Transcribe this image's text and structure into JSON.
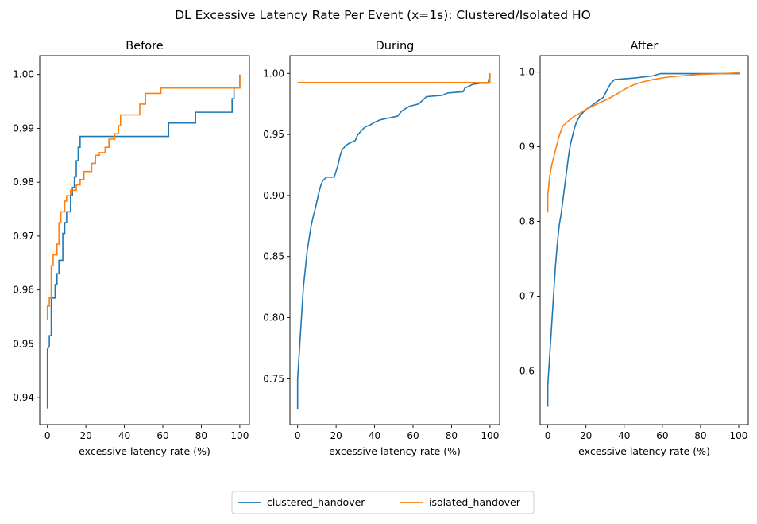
{
  "chart_data": {
    "type": "line",
    "title": "DL Excessive Latency Rate Per Event (x=1s): Clustered/Isolated HO",
    "colors": {
      "clustered_handover": "#1f77b4",
      "isolated_handover": "#ff7f0e"
    },
    "legend": {
      "placement": "bottom-center",
      "entries": [
        {
          "name": "clustered_handover",
          "color": "#1f77b4"
        },
        {
          "name": "isolated_handover",
          "color": "#ff7f0e"
        }
      ]
    },
    "panels": [
      {
        "title": "Before",
        "xlabel": "excessive latency rate (%)",
        "xlim": [
          -4,
          105
        ],
        "ylim": [
          0.935,
          1.0035
        ],
        "xticks": [
          0,
          20,
          40,
          60,
          80,
          100
        ],
        "xtick_labels": [
          "0",
          "20",
          "40",
          "60",
          "80",
          "100"
        ],
        "yticks": [
          0.94,
          0.95,
          0.96,
          0.97,
          0.98,
          0.99,
          1.0
        ],
        "ytick_labels": [
          "0.94",
          "0.95",
          "0.96",
          "0.97",
          "0.98",
          "0.99",
          "1.00"
        ],
        "series": [
          {
            "name": "clustered_handover",
            "points": [
              [
                0,
                0.938
              ],
              [
                0,
                0.949
              ],
              [
                1,
                0.9495
              ],
              [
                1,
                0.9515
              ],
              [
                2,
                0.9515
              ],
              [
                2,
                0.9585
              ],
              [
                4,
                0.9585
              ],
              [
                4,
                0.961
              ],
              [
                5,
                0.961
              ],
              [
                5,
                0.963
              ],
              [
                6,
                0.963
              ],
              [
                6,
                0.9655
              ],
              [
                8,
                0.9655
              ],
              [
                8,
                0.9705
              ],
              [
                9,
                0.9705
              ],
              [
                9,
                0.9725
              ],
              [
                10,
                0.9725
              ],
              [
                10,
                0.9745
              ],
              [
                12,
                0.9745
              ],
              [
                12,
                0.9775
              ],
              [
                13,
                0.9775
              ],
              [
                13,
                0.979
              ],
              [
                14,
                0.979
              ],
              [
                14,
                0.981
              ],
              [
                15,
                0.981
              ],
              [
                15,
                0.984
              ],
              [
                16,
                0.984
              ],
              [
                16,
                0.9865
              ],
              [
                17,
                0.9865
              ],
              [
                17,
                0.9885
              ],
              [
                63,
                0.9885
              ],
              [
                63,
                0.991
              ],
              [
                77,
                0.991
              ],
              [
                77,
                0.993
              ],
              [
                96,
                0.993
              ],
              [
                96,
                0.9955
              ],
              [
                97,
                0.9955
              ],
              [
                97,
                0.9975
              ],
              [
                100,
                0.9975
              ],
              [
                100,
                1.0
              ]
            ]
          },
          {
            "name": "isolated_handover",
            "points": [
              [
                0,
                0.9545
              ],
              [
                0,
                0.957
              ],
              [
                1,
                0.957
              ],
              [
                1,
                0.9585
              ],
              [
                2,
                0.9585
              ],
              [
                2,
                0.9645
              ],
              [
                3,
                0.9645
              ],
              [
                3,
                0.9665
              ],
              [
                5,
                0.9665
              ],
              [
                5,
                0.9685
              ],
              [
                6,
                0.9685
              ],
              [
                6,
                0.9725
              ],
              [
                7,
                0.9725
              ],
              [
                7,
                0.9745
              ],
              [
                9,
                0.9745
              ],
              [
                9,
                0.9765
              ],
              [
                10,
                0.9765
              ],
              [
                10,
                0.9775
              ],
              [
                12,
                0.9775
              ],
              [
                12,
                0.9785
              ],
              [
                15,
                0.9785
              ],
              [
                15,
                0.9795
              ],
              [
                17,
                0.9795
              ],
              [
                17,
                0.9805
              ],
              [
                19,
                0.9805
              ],
              [
                19,
                0.982
              ],
              [
                23,
                0.982
              ],
              [
                23,
                0.9835
              ],
              [
                25,
                0.9835
              ],
              [
                25,
                0.985
              ],
              [
                27,
                0.985
              ],
              [
                27,
                0.9855
              ],
              [
                30,
                0.9855
              ],
              [
                30,
                0.9865
              ],
              [
                32,
                0.9865
              ],
              [
                32,
                0.988
              ],
              [
                35,
                0.988
              ],
              [
                35,
                0.989
              ],
              [
                37,
                0.989
              ],
              [
                37,
                0.9905
              ],
              [
                38,
                0.9905
              ],
              [
                38,
                0.9925
              ],
              [
                48,
                0.9925
              ],
              [
                48,
                0.9945
              ],
              [
                51,
                0.9945
              ],
              [
                51,
                0.9965
              ],
              [
                59,
                0.9965
              ],
              [
                59,
                0.9975
              ],
              [
                100,
                0.9975
              ],
              [
                100,
                1.0
              ]
            ]
          }
        ]
      },
      {
        "title": "During",
        "xlabel": "excessive latency rate (%)",
        "xlim": [
          -4,
          105
        ],
        "ylim": [
          0.7125,
          1.0145
        ],
        "xticks": [
          0,
          20,
          40,
          60,
          80,
          100
        ],
        "xtick_labels": [
          "0",
          "20",
          "40",
          "60",
          "80",
          "100"
        ],
        "yticks": [
          0.75,
          0.8,
          0.85,
          0.9,
          0.95,
          1.0
        ],
        "ytick_labels": [
          "0.75",
          "0.80",
          "0.85",
          "0.90",
          "0.95",
          "1.00"
        ],
        "series": [
          {
            "name": "clustered_handover",
            "points": [
              [
                0,
                0.725
              ],
              [
                0,
                0.75
              ],
              [
                1,
                0.775
              ],
              [
                2,
                0.8
              ],
              [
                3,
                0.825
              ],
              [
                4,
                0.84
              ],
              [
                5,
                0.855
              ],
              [
                6,
                0.865
              ],
              [
                7,
                0.875
              ],
              [
                8,
                0.882
              ],
              [
                9,
                0.888
              ],
              [
                10,
                0.895
              ],
              [
                11,
                0.902
              ],
              [
                12,
                0.908
              ],
              [
                13,
                0.912
              ],
              [
                15,
                0.915
              ],
              [
                19,
                0.915
              ],
              [
                20,
                0.92
              ],
              [
                21,
                0.925
              ],
              [
                22,
                0.932
              ],
              [
                23,
                0.937
              ],
              [
                25,
                0.941
              ],
              [
                27,
                0.943
              ],
              [
                30,
                0.945
              ],
              [
                31,
                0.949
              ],
              [
                33,
                0.953
              ],
              [
                35,
                0.956
              ],
              [
                38,
                0.958
              ],
              [
                40,
                0.96
              ],
              [
                43,
                0.962
              ],
              [
                46,
                0.963
              ],
              [
                52,
                0.965
              ],
              [
                54,
                0.969
              ],
              [
                56,
                0.971
              ],
              [
                58,
                0.973
              ],
              [
                63,
                0.975
              ],
              [
                65,
                0.978
              ],
              [
                67,
                0.981
              ],
              [
                75,
                0.982
              ],
              [
                78,
                0.984
              ],
              [
                86,
                0.985
              ],
              [
                87,
                0.988
              ],
              [
                91,
                0.991
              ],
              [
                95,
                0.992
              ],
              [
                99,
                0.992
              ],
              [
                100,
                1.0
              ]
            ]
          },
          {
            "name": "isolated_handover",
            "points": [
              [
                0,
                0.9925
              ],
              [
                100,
                0.9925
              ],
              [
                100,
                1.0
              ]
            ]
          }
        ]
      },
      {
        "title": "After",
        "xlabel": "excessive latency rate (%)",
        "xlim": [
          -4,
          105
        ],
        "ylim": [
          0.528,
          1.022
        ],
        "xticks": [
          0,
          20,
          40,
          60,
          80,
          100
        ],
        "xtick_labels": [
          "0",
          "20",
          "40",
          "60",
          "80",
          "100"
        ],
        "yticks": [
          0.6,
          0.7,
          0.8,
          0.9,
          1.0
        ],
        "ytick_labels": [
          "0.6",
          "0.7",
          "0.8",
          "0.9",
          "1.0"
        ],
        "series": [
          {
            "name": "clustered_handover",
            "points": [
              [
                0,
                0.552
              ],
              [
                0,
                0.58
              ],
              [
                1,
                0.62
              ],
              [
                2,
                0.66
              ],
              [
                3,
                0.7
              ],
              [
                4,
                0.74
              ],
              [
                5,
                0.77
              ],
              [
                6,
                0.795
              ],
              [
                7,
                0.81
              ],
              [
                8,
                0.83
              ],
              [
                9,
                0.85
              ],
              [
                10,
                0.87
              ],
              [
                11,
                0.89
              ],
              [
                12,
                0.905
              ],
              [
                13,
                0.915
              ],
              [
                14,
                0.925
              ],
              [
                15,
                0.933
              ],
              [
                17,
                0.942
              ],
              [
                20,
                0.95
              ],
              [
                23,
                0.955
              ],
              [
                26,
                0.961
              ],
              [
                29,
                0.966
              ],
              [
                31,
                0.976
              ],
              [
                33,
                0.985
              ],
              [
                35,
                0.99
              ],
              [
                45,
                0.992
              ],
              [
                55,
                0.995
              ],
              [
                59,
                0.998
              ],
              [
                100,
                0.998
              ],
              [
                100,
                1.0
              ]
            ]
          },
          {
            "name": "isolated_handover",
            "points": [
              [
                0,
                0.812
              ],
              [
                0,
                0.835
              ],
              [
                1,
                0.86
              ],
              [
                2,
                0.875
              ],
              [
                3,
                0.885
              ],
              [
                4,
                0.895
              ],
              [
                5,
                0.905
              ],
              [
                6,
                0.915
              ],
              [
                7,
                0.922
              ],
              [
                8,
                0.928
              ],
              [
                10,
                0.933
              ],
              [
                12,
                0.937
              ],
              [
                14,
                0.941
              ],
              [
                17,
                0.945
              ],
              [
                20,
                0.95
              ],
              [
                24,
                0.955
              ],
              [
                28,
                0.96
              ],
              [
                33,
                0.966
              ],
              [
                37,
                0.972
              ],
              [
                41,
                0.978
              ],
              [
                45,
                0.983
              ],
              [
                50,
                0.987
              ],
              [
                55,
                0.99
              ],
              [
                62,
                0.993
              ],
              [
                70,
                0.995
              ],
              [
                80,
                0.997
              ],
              [
                92,
                0.998
              ],
              [
                100,
                0.999
              ],
              [
                100,
                1.0
              ]
            ]
          }
        ]
      }
    ]
  }
}
